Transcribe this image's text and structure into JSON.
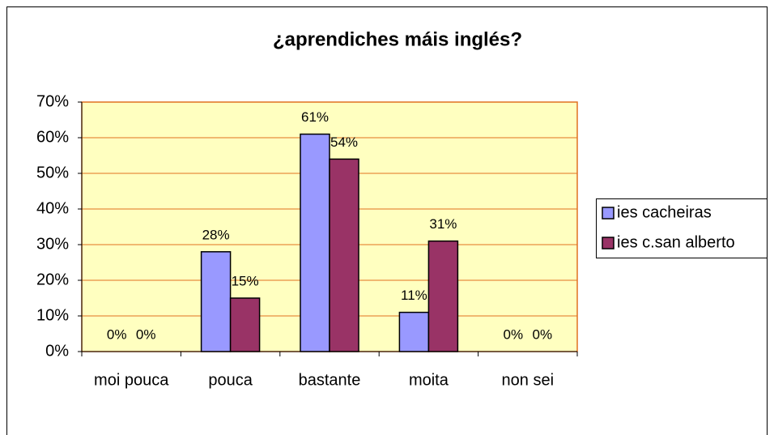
{
  "chart_data": {
    "type": "bar",
    "title": "¿aprendiches máis inglés?",
    "categories": [
      "moi pouca",
      "pouca",
      "bastante",
      "moita",
      "non sei"
    ],
    "series": [
      {
        "name": "ies cacheiras",
        "color": "#9999ff",
        "values": [
          0,
          28,
          61,
          11,
          0
        ],
        "value_labels": [
          "0%",
          "28%",
          "61%",
          "11%",
          "0%"
        ]
      },
      {
        "name": "ies c.san alberto",
        "color": "#993366",
        "values": [
          0,
          15,
          54,
          31,
          0
        ],
        "value_labels": [
          "0%",
          "15%",
          "54%",
          "31%",
          "0%"
        ]
      }
    ],
    "ylim": [
      0,
      70
    ],
    "yticks": [
      {
        "value": 0,
        "label": "0%"
      },
      {
        "value": 10,
        "label": "10%"
      },
      {
        "value": 20,
        "label": "20%"
      },
      {
        "value": 30,
        "label": "30%"
      },
      {
        "value": 40,
        "label": "40%"
      },
      {
        "value": 50,
        "label": "50%"
      },
      {
        "value": 60,
        "label": "60%"
      },
      {
        "value": 70,
        "label": "70%"
      }
    ],
    "grid": true,
    "legend": "right"
  }
}
